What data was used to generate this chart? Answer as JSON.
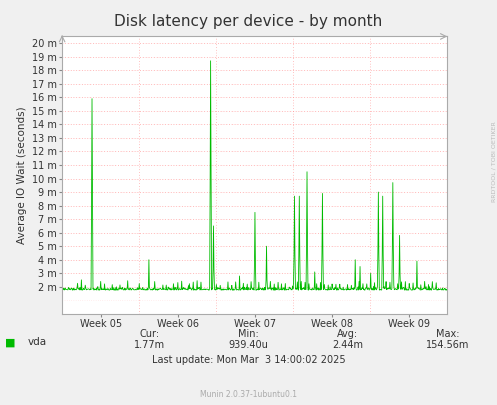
{
  "title": "Disk latency per device - by month",
  "ylabel": "Average IO Wait (seconds)",
  "ytick_labels": [
    "2 m",
    "3 m",
    "4 m",
    "5 m",
    "6 m",
    "7 m",
    "8 m",
    "9 m",
    "10 m",
    "11 m",
    "12 m",
    "13 m",
    "14 m",
    "15 m",
    "16 m",
    "17 m",
    "18 m",
    "19 m",
    "20 m"
  ],
  "ytick_values": [
    0.002,
    0.003,
    0.004,
    0.005,
    0.006,
    0.007,
    0.008,
    0.009,
    0.01,
    0.011,
    0.012,
    0.013,
    0.014,
    0.015,
    0.016,
    0.017,
    0.018,
    0.019,
    0.02
  ],
  "ymin": 0.0,
  "ymax": 0.0205,
  "xtick_labels": [
    "Week 05",
    "Week 06",
    "Week 07",
    "Week 08",
    "Week 09"
  ],
  "line_color": "#00bb00",
  "background_color": "#f0f0f0",
  "plot_bg_color": "#ffffff",
  "grid_color_major": "#ff8888",
  "grid_color_minor": "#ffcccc",
  "legend_label": "vda",
  "legend_color": "#00bb00",
  "cur": "1.77m",
  "min_val": "939.40u",
  "avg": "2.44m",
  "max_val": "154.56m",
  "last_update": "Last update: Mon Mar  3 14:00:02 2025",
  "munin_version": "Munin 2.0.37-1ubuntu0.1",
  "rrdtool_label": "RRDTOOL / TOBI OETIKER",
  "title_fontsize": 11,
  "axis_fontsize": 7.5,
  "tick_fontsize": 7,
  "legend_fontsize": 7.5,
  "n_points": 800
}
